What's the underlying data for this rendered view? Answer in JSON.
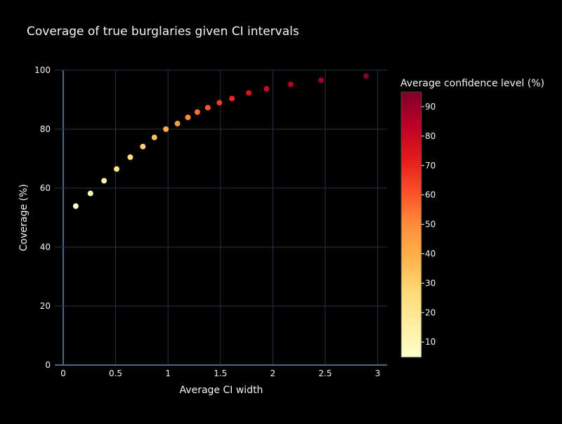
{
  "chart_data": {
    "type": "scatter",
    "title": "Coverage of true burglaries given CI intervals",
    "xlabel": "Average CI width",
    "ylabel": "Coverage (%)",
    "xlim": [
      -0.08,
      3.09
    ],
    "ylim": [
      0,
      100
    ],
    "xticks": [
      0,
      0.5,
      1,
      1.5,
      2,
      2.5,
      3
    ],
    "xtick_labels": [
      "0",
      "0.5",
      "1",
      "1.5",
      "2",
      "2.5",
      "3"
    ],
    "yticks": [
      0,
      20,
      40,
      60,
      80,
      100
    ],
    "ytick_labels": [
      "0",
      "20",
      "40",
      "60",
      "80",
      "100"
    ],
    "grid": true,
    "points": [
      {
        "x": 0.12,
        "y": 53.9,
        "c": 5
      },
      {
        "x": 0.26,
        "y": 58.2,
        "c": 10
      },
      {
        "x": 0.39,
        "y": 62.5,
        "c": 15
      },
      {
        "x": 0.51,
        "y": 66.5,
        "c": 20
      },
      {
        "x": 0.64,
        "y": 70.5,
        "c": 25
      },
      {
        "x": 0.76,
        "y": 74.1,
        "c": 30
      },
      {
        "x": 0.87,
        "y": 77.2,
        "c": 35
      },
      {
        "x": 0.98,
        "y": 80.0,
        "c": 40
      },
      {
        "x": 1.09,
        "y": 81.9,
        "c": 45
      },
      {
        "x": 1.19,
        "y": 84.0,
        "c": 50
      },
      {
        "x": 1.28,
        "y": 85.8,
        "c": 55
      },
      {
        "x": 1.38,
        "y": 87.3,
        "c": 60
      },
      {
        "x": 1.49,
        "y": 89.0,
        "c": 65
      },
      {
        "x": 1.61,
        "y": 90.4,
        "c": 70
      },
      {
        "x": 1.77,
        "y": 92.3,
        "c": 75
      },
      {
        "x": 1.94,
        "y": 93.7,
        "c": 80
      },
      {
        "x": 2.17,
        "y": 95.2,
        "c": 85
      },
      {
        "x": 2.46,
        "y": 96.6,
        "c": 90
      },
      {
        "x": 2.89,
        "y": 98.0,
        "c": 95
      }
    ],
    "colorbar": {
      "title": "Average confidence level (%)",
      "range": [
        4.8,
        95
      ],
      "ticks": [
        10,
        20,
        30,
        40,
        50,
        60,
        70,
        80,
        90
      ],
      "tick_labels": [
        "10",
        "20",
        "30",
        "40",
        "50",
        "60",
        "70",
        "80",
        "90"
      ],
      "colorscale": [
        "#ffffcc",
        "#ffeda0",
        "#fed976",
        "#feb24c",
        "#fd8d3c",
        "#fc4e2a",
        "#e31a1c",
        "#bd0026",
        "#800026"
      ]
    }
  }
}
